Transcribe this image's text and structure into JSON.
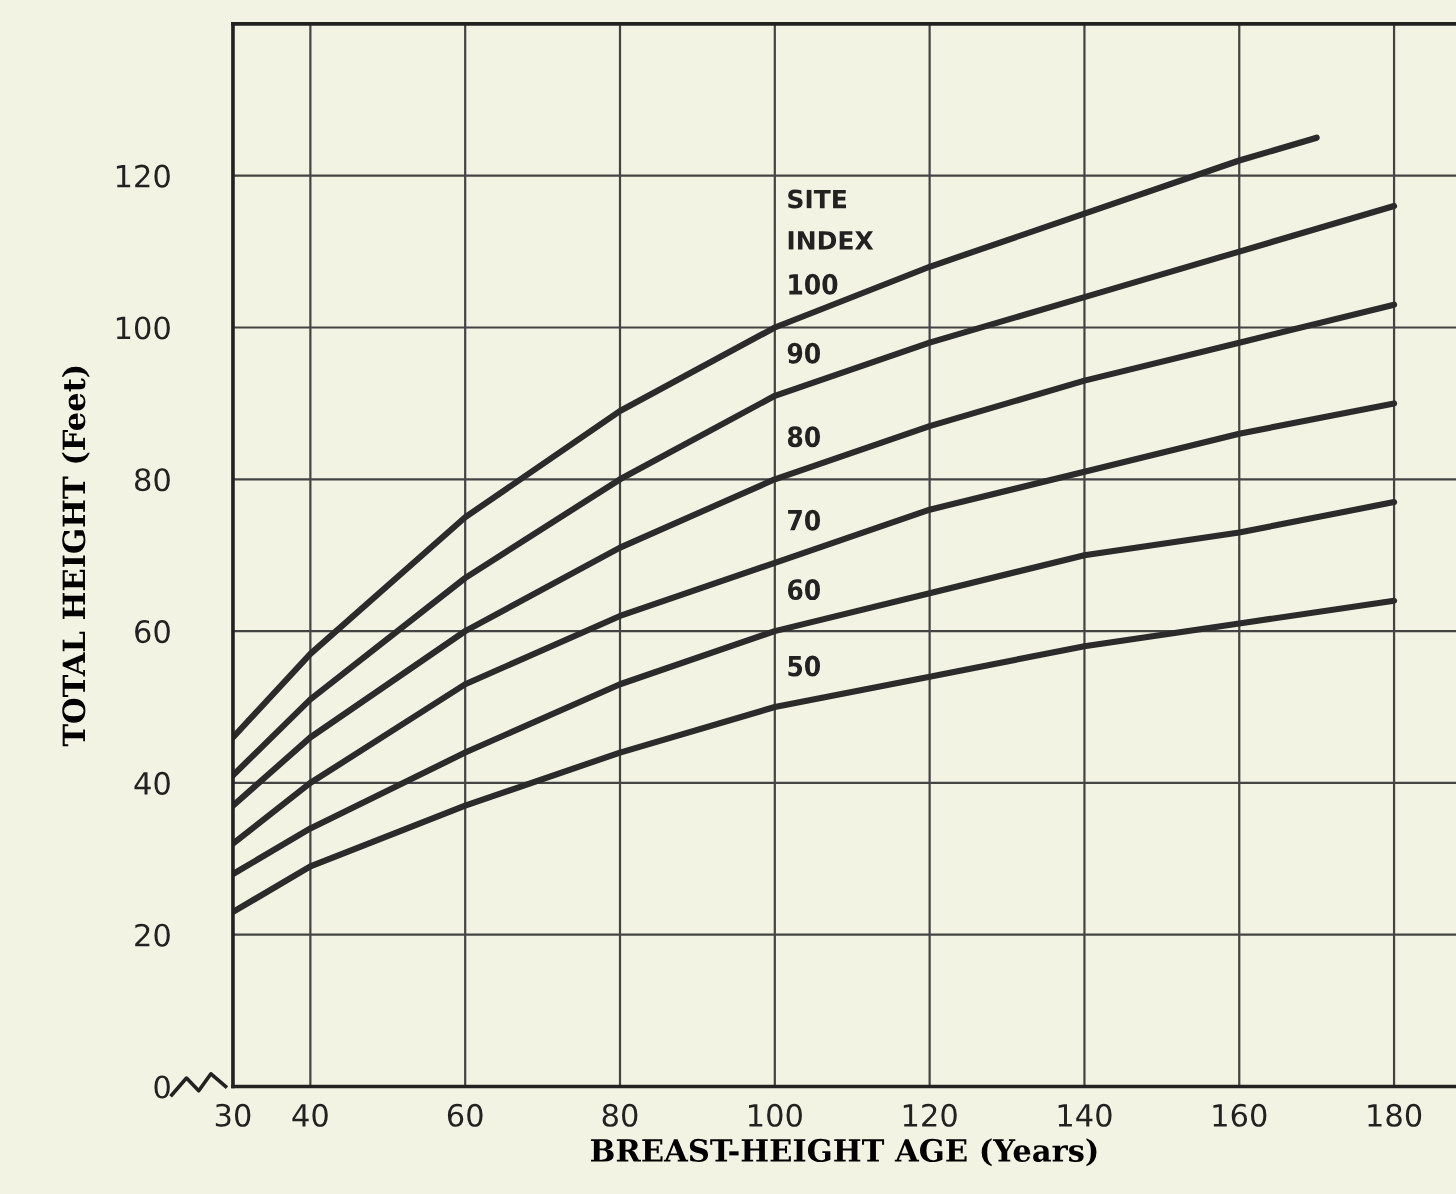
{
  "chart_data": {
    "type": "line",
    "xlabel": "BREAST-HEIGHT AGE (Years)",
    "ylabel": "TOTAL HEIGHT (Feet)",
    "legend_title": "SITE\nINDEX",
    "x": [
      30,
      40,
      60,
      80,
      100,
      120,
      140,
      160,
      180
    ],
    "series": [
      {
        "name": "100",
        "color": "#2b2b2b",
        "x": [
          30,
          40,
          60,
          80,
          100,
          120,
          140,
          160,
          170
        ],
        "values": [
          46,
          57,
          75,
          89,
          100,
          108,
          115,
          122,
          125
        ]
      },
      {
        "name": "90",
        "color": "#2b2b2b",
        "values": [
          41,
          51,
          67,
          80,
          91,
          98,
          104,
          110,
          116
        ]
      },
      {
        "name": "80",
        "color": "#2b2b2b",
        "values": [
          37,
          46,
          60,
          71,
          80,
          87,
          93,
          98,
          103
        ]
      },
      {
        "name": "70",
        "color": "#2b2b2b",
        "values": [
          32,
          40,
          53,
          62,
          69,
          76,
          81,
          86,
          90
        ]
      },
      {
        "name": "60",
        "color": "#2b2b2b",
        "values": [
          28,
          34,
          44,
          53,
          60,
          65,
          70,
          73,
          77
        ]
      },
      {
        "name": "50",
        "color": "#2b2b2b",
        "values": [
          23,
          29,
          37,
          44,
          50,
          54,
          58,
          61,
          64
        ]
      }
    ],
    "xlim": [
      30,
      188
    ],
    "ylim": [
      0,
      140
    ],
    "xticks": [
      30,
      40,
      60,
      80,
      100,
      120,
      140,
      160,
      180
    ],
    "yticks": [
      0,
      20,
      40,
      60,
      80,
      100,
      120
    ],
    "grid": true,
    "legend": false,
    "marker": "none",
    "line_style": "solid"
  }
}
